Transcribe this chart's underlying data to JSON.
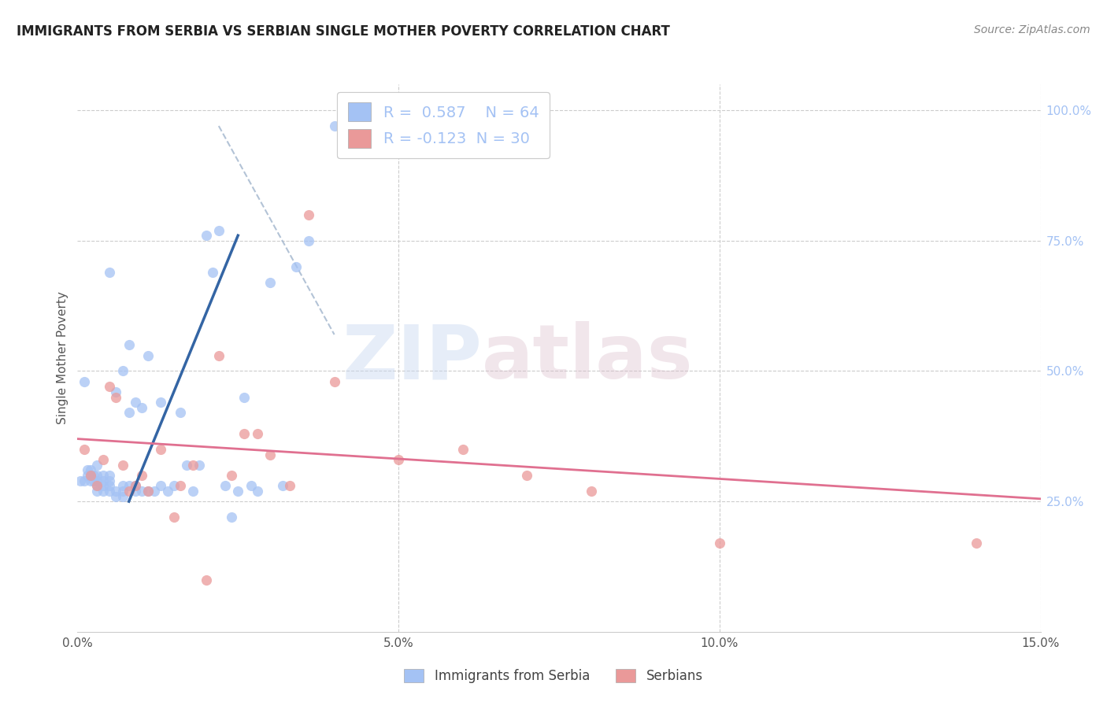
{
  "title": "IMMIGRANTS FROM SERBIA VS SERBIAN SINGLE MOTHER POVERTY CORRELATION CHART",
  "source": "Source: ZipAtlas.com",
  "ylabel": "Single Mother Poverty",
  "xmin": 0.0,
  "xmax": 0.15,
  "ymin": 0.0,
  "ymax": 1.05,
  "xtick_labels": [
    "0.0%",
    "5.0%",
    "10.0%",
    "15.0%"
  ],
  "xtick_vals": [
    0.0,
    0.05,
    0.1,
    0.15
  ],
  "ytick_labels_right": [
    "100.0%",
    "75.0%",
    "50.0%",
    "25.0%"
  ],
  "ytick_vals_right": [
    1.0,
    0.75,
    0.5,
    0.25
  ],
  "blue_R": 0.587,
  "blue_N": 64,
  "pink_R": -0.123,
  "pink_N": 30,
  "blue_color": "#a4c2f4",
  "pink_color": "#ea9999",
  "blue_line_color": "#3465a4",
  "pink_line_color": "#e07090",
  "diagonal_color": "#a0b4cc",
  "watermark_zip": "ZIP",
  "watermark_atlas": "atlas",
  "legend_label_blue": "Immigrants from Serbia",
  "legend_label_pink": "Serbians",
  "blue_scatter_x": [
    0.0005,
    0.001,
    0.001,
    0.0015,
    0.0015,
    0.002,
    0.002,
    0.002,
    0.0025,
    0.0025,
    0.003,
    0.003,
    0.003,
    0.003,
    0.003,
    0.004,
    0.004,
    0.004,
    0.004,
    0.005,
    0.005,
    0.005,
    0.005,
    0.005,
    0.006,
    0.006,
    0.006,
    0.007,
    0.007,
    0.007,
    0.007,
    0.008,
    0.008,
    0.008,
    0.009,
    0.009,
    0.009,
    0.01,
    0.01,
    0.011,
    0.011,
    0.012,
    0.013,
    0.013,
    0.014,
    0.015,
    0.016,
    0.017,
    0.018,
    0.019,
    0.02,
    0.021,
    0.022,
    0.023,
    0.024,
    0.025,
    0.026,
    0.027,
    0.028,
    0.03,
    0.032,
    0.034,
    0.036,
    0.04
  ],
  "blue_scatter_y": [
    0.29,
    0.48,
    0.29,
    0.3,
    0.31,
    0.29,
    0.3,
    0.31,
    0.29,
    0.3,
    0.27,
    0.28,
    0.29,
    0.3,
    0.32,
    0.27,
    0.28,
    0.29,
    0.3,
    0.27,
    0.28,
    0.29,
    0.3,
    0.69,
    0.26,
    0.27,
    0.46,
    0.26,
    0.27,
    0.28,
    0.5,
    0.28,
    0.42,
    0.55,
    0.27,
    0.28,
    0.44,
    0.27,
    0.43,
    0.27,
    0.53,
    0.27,
    0.28,
    0.44,
    0.27,
    0.28,
    0.42,
    0.32,
    0.27,
    0.32,
    0.76,
    0.69,
    0.77,
    0.28,
    0.22,
    0.27,
    0.45,
    0.28,
    0.27,
    0.67,
    0.28,
    0.7,
    0.75,
    0.97
  ],
  "pink_scatter_x": [
    0.001,
    0.002,
    0.003,
    0.004,
    0.005,
    0.006,
    0.007,
    0.008,
    0.009,
    0.01,
    0.011,
    0.013,
    0.015,
    0.016,
    0.018,
    0.02,
    0.022,
    0.024,
    0.026,
    0.028,
    0.03,
    0.033,
    0.036,
    0.04,
    0.05,
    0.06,
    0.07,
    0.08,
    0.1,
    0.14
  ],
  "pink_scatter_y": [
    0.35,
    0.3,
    0.28,
    0.33,
    0.47,
    0.45,
    0.32,
    0.27,
    0.28,
    0.3,
    0.27,
    0.35,
    0.22,
    0.28,
    0.32,
    0.1,
    0.53,
    0.3,
    0.38,
    0.38,
    0.34,
    0.28,
    0.8,
    0.48,
    0.33,
    0.35,
    0.3,
    0.27,
    0.17,
    0.17
  ],
  "blue_line_x": [
    0.008,
    0.025
  ],
  "blue_line_y": [
    0.25,
    0.76
  ],
  "pink_line_x": [
    0.0,
    0.15
  ],
  "pink_line_y": [
    0.37,
    0.255
  ],
  "diagonal_line_x": [
    0.022,
    0.04
  ],
  "diagonal_line_y": [
    0.97,
    0.57
  ]
}
